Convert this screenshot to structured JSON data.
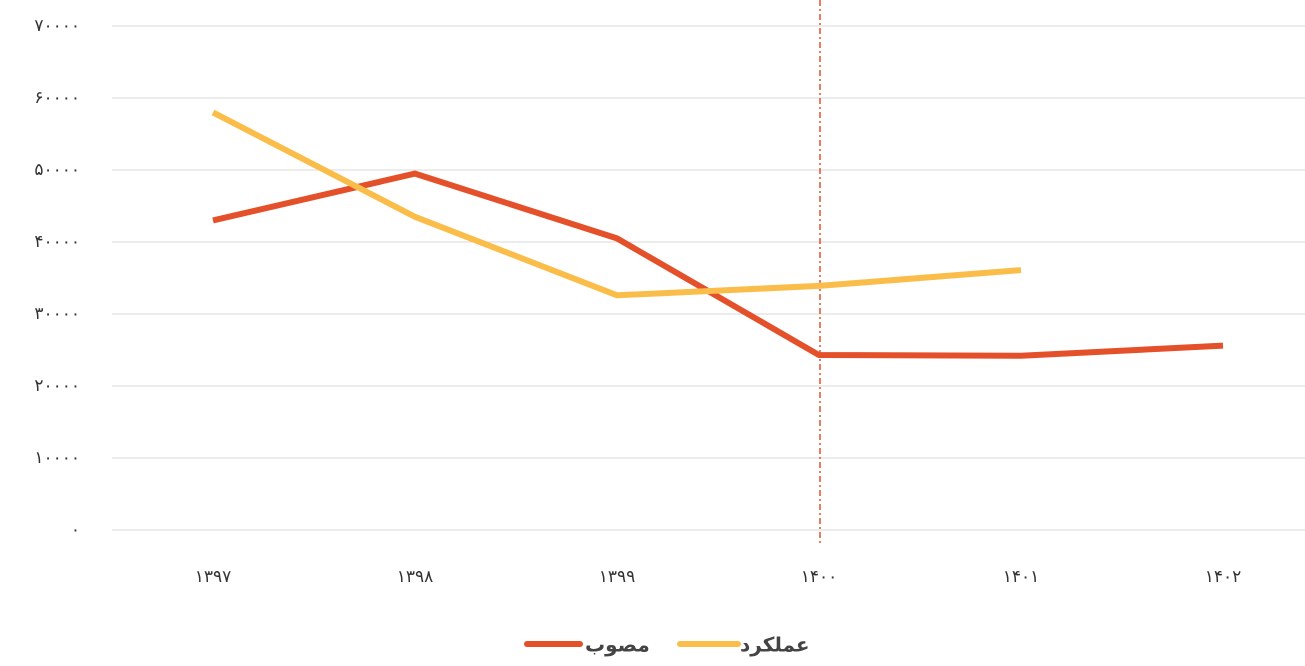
{
  "chart_data": {
    "type": "line",
    "categories": [
      "۱۳۹۷",
      "۱۳۹۸",
      "۱۳۹۹",
      "۱۴۰۰",
      "۱۴۰۱",
      "۱۴۰۲"
    ],
    "series": [
      {
        "name": "مصوب",
        "color": "#e4502a",
        "values": [
          43000,
          49500,
          40500,
          24300,
          24200,
          25600
        ]
      },
      {
        "name": "عملکرد",
        "color": "#fbbd4a",
        "values": [
          58000,
          43500,
          32600,
          33900,
          36100,
          null
        ]
      }
    ],
    "ylim": [
      0,
      70000
    ],
    "yticks": [
      {
        "value": 0,
        "label": "۰"
      },
      {
        "value": 10000,
        "label": "۱۰۰۰۰"
      },
      {
        "value": 20000,
        "label": "۲۰۰۰۰"
      },
      {
        "value": 30000,
        "label": "۳۰۰۰۰"
      },
      {
        "value": 40000,
        "label": "۴۰۰۰۰"
      },
      {
        "value": 50000,
        "label": "۵۰۰۰۰"
      },
      {
        "value": 60000,
        "label": "۶۰۰۰۰"
      },
      {
        "value": 70000,
        "label": "۷۰۰۰۰"
      }
    ],
    "grid": true
  }
}
